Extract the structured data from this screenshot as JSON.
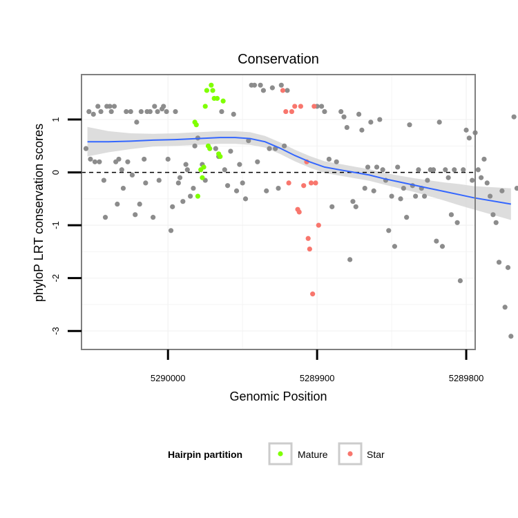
{
  "chart_data": {
    "type": "scatter",
    "title": "Conservation",
    "xlabel": "Genomic Position",
    "ylabel": "phyloP LRT conservation scores",
    "x_reversed": true,
    "xlim": [
      5290058,
      5289794
    ],
    "ylim": [
      -3.35,
      1.85
    ],
    "x_ticks": [
      5290000,
      5289900,
      5289800
    ],
    "x_tick_labels": [
      "5290000",
      "5289900",
      "5289800"
    ],
    "y_ticks": [
      -3,
      -2,
      -1,
      0,
      1
    ],
    "y_tick_labels": [
      "-3",
      "-2",
      "-1",
      "0",
      "1"
    ],
    "reference_line": {
      "y": 0,
      "style": "dashed"
    },
    "legend": {
      "title": "Hairpin partition",
      "position": "bottom",
      "entries": [
        {
          "label": "Mature",
          "color": "#7FFF00"
        },
        {
          "label": "Star",
          "color": "#F8766D"
        }
      ]
    },
    "colors": {
      "background": "#ffffff",
      "panel_border": "#7f7f7f",
      "grid": "#f2f2f2",
      "points_other": "#8c8c8c",
      "mature": "#7FFF00",
      "star": "#F8766D",
      "smooth_line": "#3366FF",
      "smooth_band": "#d9d9d9"
    },
    "series": [
      {
        "name": "Other",
        "points": [
          [
            5290055,
            0.45
          ],
          [
            5290053,
            1.15
          ],
          [
            5290052,
            0.25
          ],
          [
            5290050,
            1.1
          ],
          [
            5290049,
            0.2
          ],
          [
            5290047,
            1.25
          ],
          [
            5290046,
            0.2
          ],
          [
            5290045,
            1.15
          ],
          [
            5290043,
            -0.15
          ],
          [
            5290042,
            -0.85
          ],
          [
            5290041,
            1.25
          ],
          [
            5290039,
            1.25
          ],
          [
            5290038,
            1.15
          ],
          [
            5290036,
            1.25
          ],
          [
            5290035,
            0.2
          ],
          [
            5290034,
            -0.6
          ],
          [
            5290033,
            0.25
          ],
          [
            5290031,
            0.05
          ],
          [
            5290030,
            -0.3
          ],
          [
            5290028,
            1.15
          ],
          [
            5290027,
            0.2
          ],
          [
            5290025,
            1.15
          ],
          [
            5290024,
            -0.05
          ],
          [
            5290022,
            -0.8
          ],
          [
            5290021,
            0.95
          ],
          [
            5290019,
            -0.6
          ],
          [
            5290018,
            1.15
          ],
          [
            5290016,
            0.25
          ],
          [
            5290015,
            -0.2
          ],
          [
            5290014,
            1.15
          ],
          [
            5290012,
            1.15
          ],
          [
            5290010,
            -0.85
          ],
          [
            5290009,
            1.25
          ],
          [
            5290007,
            1.15
          ],
          [
            5290006,
            -0.15
          ],
          [
            5290004,
            1.2
          ],
          [
            5290003,
            1.25
          ],
          [
            5290001,
            1.15
          ],
          [
            5290000,
            0.25
          ],
          [
            5289998,
            -1.1
          ],
          [
            5289997,
            -0.65
          ],
          [
            5289995,
            1.15
          ],
          [
            5289993,
            -0.2
          ],
          [
            5289992,
            -0.1
          ],
          [
            5289990,
            -0.55
          ],
          [
            5289988,
            0.15
          ],
          [
            5289987,
            0.05
          ],
          [
            5289985,
            -0.45
          ],
          [
            5289983,
            -0.3
          ],
          [
            5289982,
            0.5
          ],
          [
            5289980,
            0.65
          ],
          [
            5289977,
            0.15
          ],
          [
            5289975,
            -0.15
          ],
          [
            5289968,
            0.45
          ],
          [
            5289966,
            0.3
          ],
          [
            5289964,
            1.15
          ],
          [
            5289962,
            0.05
          ],
          [
            5289960,
            -0.25
          ],
          [
            5289958,
            0.4
          ],
          [
            5289956,
            1.1
          ],
          [
            5289954,
            -0.35
          ],
          [
            5289952,
            0.15
          ],
          [
            5289950,
            -0.2
          ],
          [
            5289948,
            -0.5
          ],
          [
            5289946,
            0.6
          ],
          [
            5289944,
            1.65
          ],
          [
            5289942,
            1.65
          ],
          [
            5289940,
            0.2
          ],
          [
            5289938,
            1.65
          ],
          [
            5289936,
            1.55
          ],
          [
            5289934,
            -0.35
          ],
          [
            5289932,
            0.45
          ],
          [
            5289930,
            1.6
          ],
          [
            5289928,
            0.45
          ],
          [
            5289926,
            -0.3
          ],
          [
            5289924,
            1.65
          ],
          [
            5289922,
            0.5
          ],
          [
            5289920,
            1.55
          ],
          [
            5289900,
            1.25
          ],
          [
            5289897,
            1.25
          ],
          [
            5289895,
            1.15
          ],
          [
            5289892,
            0.25
          ],
          [
            5289890,
            -0.65
          ],
          [
            5289887,
            0.2
          ],
          [
            5289884,
            1.15
          ],
          [
            5289882,
            1.05
          ],
          [
            5289880,
            0.85
          ],
          [
            5289878,
            -1.65
          ],
          [
            5289876,
            -0.55
          ],
          [
            5289874,
            -0.65
          ],
          [
            5289872,
            1.1
          ],
          [
            5289870,
            0.8
          ],
          [
            5289868,
            -0.3
          ],
          [
            5289866,
            0.1
          ],
          [
            5289864,
            0.95
          ],
          [
            5289862,
            -0.35
          ],
          [
            5289860,
            0.1
          ],
          [
            5289858,
            1.0
          ],
          [
            5289856,
            0.05
          ],
          [
            5289854,
            -0.15
          ],
          [
            5289852,
            -1.1
          ],
          [
            5289850,
            -0.45
          ],
          [
            5289848,
            -1.4
          ],
          [
            5289846,
            0.1
          ],
          [
            5289844,
            -0.5
          ],
          [
            5289842,
            -0.3
          ],
          [
            5289840,
            -0.85
          ],
          [
            5289838,
            0.9
          ],
          [
            5289836,
            -0.25
          ],
          [
            5289834,
            -0.45
          ],
          [
            5289832,
            0.05
          ],
          [
            5289830,
            -0.3
          ],
          [
            5289828,
            -0.45
          ],
          [
            5289826,
            -0.15
          ],
          [
            5289824,
            0.05
          ],
          [
            5289822,
            0.05
          ],
          [
            5289820,
            -1.3
          ],
          [
            5289818,
            0.95
          ],
          [
            5289816,
            -1.4
          ],
          [
            5289814,
            0.05
          ],
          [
            5289812,
            -0.1
          ],
          [
            5289810,
            -0.8
          ],
          [
            5289808,
            0.05
          ],
          [
            5289806,
            -0.95
          ],
          [
            5289804,
            -2.05
          ],
          [
            5289802,
            0.05
          ],
          [
            5289800,
            0.8
          ],
          [
            5289798,
            0.65
          ],
          [
            5289796,
            -0.15
          ],
          [
            5289794,
            0.75
          ],
          [
            5289792,
            0.05
          ],
          [
            5289790,
            -0.1
          ],
          [
            5289788,
            0.25
          ],
          [
            5289786,
            -0.2
          ],
          [
            5289784,
            -0.45
          ],
          [
            5289782,
            -0.8
          ],
          [
            5289780,
            -0.95
          ],
          [
            5289778,
            -1.7
          ],
          [
            5289776,
            -0.35
          ],
          [
            5289774,
            -2.55
          ],
          [
            5289772,
            -1.8
          ],
          [
            5289770,
            -3.1
          ],
          [
            5289768,
            1.05
          ],
          [
            5289766,
            -0.3
          ]
        ]
      },
      {
        "name": "Mature",
        "points": [
          [
            5289982,
            0.95
          ],
          [
            5289981,
            0.9
          ],
          [
            5289980,
            -0.45
          ],
          [
            5289978,
            0.05
          ],
          [
            5289977,
            -0.1
          ],
          [
            5289976,
            0.1
          ],
          [
            5289975,
            1.25
          ],
          [
            5289974,
            1.55
          ],
          [
            5289973,
            0.5
          ],
          [
            5289972,
            0.45
          ],
          [
            5289971,
            1.65
          ],
          [
            5289970,
            1.55
          ],
          [
            5289969,
            1.4
          ],
          [
            5289967,
            1.4
          ],
          [
            5289966,
            0.35
          ],
          [
            5289965,
            0.3
          ],
          [
            5289963,
            1.35
          ]
        ]
      },
      {
        "name": "Star",
        "points": [
          [
            5289923,
            1.55
          ],
          [
            5289921,
            1.15
          ],
          [
            5289919,
            -0.2
          ],
          [
            5289917,
            1.15
          ],
          [
            5289915,
            1.25
          ],
          [
            5289913,
            -0.7
          ],
          [
            5289912,
            -0.75
          ],
          [
            5289911,
            1.25
          ],
          [
            5289909,
            -0.25
          ],
          [
            5289907,
            0.2
          ],
          [
            5289906,
            -1.25
          ],
          [
            5289905,
            -1.45
          ],
          [
            5289904,
            -0.2
          ],
          [
            5289903,
            -2.3
          ],
          [
            5289902,
            1.25
          ],
          [
            5289901,
            -0.2
          ],
          [
            5289899,
            -1.0
          ]
        ]
      }
    ],
    "smooth": {
      "x": [
        5290054,
        5290040,
        5290025,
        5290010,
        5289995,
        5289980,
        5289965,
        5289955,
        5289945,
        5289935,
        5289925,
        5289915,
        5289905,
        5289895,
        5289885,
        5289875,
        5289865,
        5289855,
        5289845,
        5289835,
        5289825,
        5289815,
        5289805,
        5289795,
        5289770
      ],
      "y": [
        0.58,
        0.58,
        0.59,
        0.61,
        0.62,
        0.64,
        0.66,
        0.66,
        0.64,
        0.58,
        0.46,
        0.32,
        0.2,
        0.1,
        0.05,
        0.0,
        -0.05,
        -0.12,
        -0.18,
        -0.24,
        -0.3,
        -0.36,
        -0.42,
        -0.48,
        -0.6
      ],
      "se": [
        0.28,
        0.2,
        0.15,
        0.12,
        0.12,
        0.12,
        0.12,
        0.12,
        0.12,
        0.11,
        0.11,
        0.11,
        0.11,
        0.11,
        0.11,
        0.11,
        0.11,
        0.11,
        0.12,
        0.13,
        0.15,
        0.17,
        0.2,
        0.22,
        0.3
      ]
    }
  }
}
